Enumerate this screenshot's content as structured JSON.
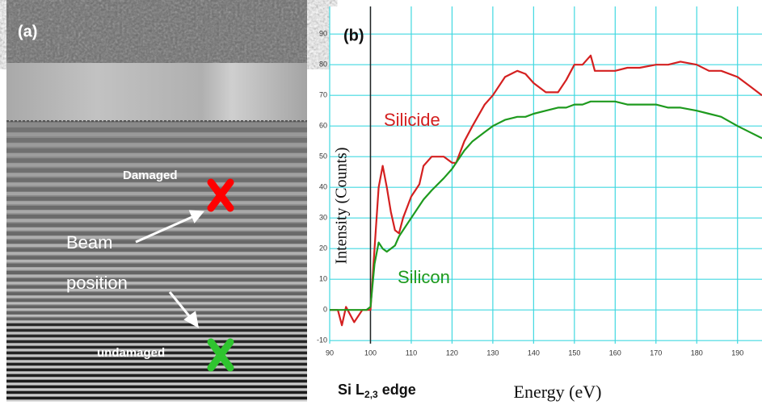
{
  "panel_a": {
    "label": "(a)",
    "damaged": "Damaged",
    "beam": [
      "Beam",
      "position"
    ],
    "undamaged": "undamaged"
  },
  "chart_data": {
    "type": "line",
    "panel_label": "(b)",
    "x_label": "Energy (eV)",
    "y_label": "Intensity (Counts)",
    "edge_label": [
      "Si L",
      "2,3",
      " edge"
    ],
    "edge_marker_x": 100,
    "x": [
      90,
      92,
      93,
      94,
      96,
      98,
      99,
      100,
      101,
      102,
      103,
      104,
      105,
      106,
      107,
      108,
      110,
      112,
      113,
      115,
      118,
      120,
      121,
      123,
      125,
      128,
      130,
      133,
      136,
      138,
      140,
      143,
      146,
      148,
      150,
      152,
      154,
      155,
      157,
      160,
      163,
      166,
      170,
      173,
      176,
      180,
      183,
      186,
      190,
      193,
      196
    ],
    "series": [
      {
        "name": "Silicide",
        "color": "#d42020",
        "values": [
          0,
          0,
          -5,
          1,
          -4,
          0,
          0,
          0,
          20,
          40,
          47,
          40,
          32,
          26,
          25,
          30,
          37,
          41,
          47,
          50,
          50,
          48,
          48,
          55,
          60,
          67,
          70,
          76,
          78,
          77,
          74,
          71,
          71,
          75,
          80,
          80,
          83,
          78,
          78,
          78,
          79,
          79,
          80,
          80,
          81,
          80,
          78,
          78,
          76,
          73,
          70
        ]
      },
      {
        "name": "Silicon",
        "color": "#1e9a1e",
        "values": [
          0,
          0,
          0,
          0,
          0,
          0,
          0,
          1,
          15,
          22,
          20,
          19,
          20,
          21,
          24,
          26,
          30,
          34,
          36,
          39,
          43,
          46,
          48,
          52,
          55,
          58,
          60,
          62,
          63,
          63,
          64,
          65,
          66,
          66,
          67,
          67,
          68,
          68,
          68,
          68,
          67,
          67,
          67,
          66,
          66,
          65,
          64,
          63,
          60,
          58,
          56
        ]
      }
    ],
    "xlim": [
      90,
      196
    ],
    "ylim": [
      -11,
      99
    ],
    "xticks": [
      90,
      100,
      110,
      120,
      130,
      140,
      150,
      160,
      170,
      180,
      190
    ],
    "yticks": [
      -10,
      0,
      10,
      20,
      30,
      40,
      50,
      60,
      70,
      80,
      90
    ],
    "grid": true,
    "grid_color": "#40d8e0"
  }
}
